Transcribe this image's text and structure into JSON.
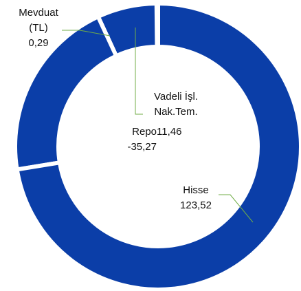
{
  "chart_data": {
    "type": "donut",
    "categories": [
      "Hisse",
      "Repo",
      "Vadeli İşl. Nak.Tem.",
      "Mevduat (TL)"
    ],
    "values": [
      123.52,
      -35.27,
      11.46,
      0.29
    ],
    "value_labels": [
      "123,52",
      "-35,27",
      "11,46",
      "0,29"
    ],
    "color": "#0b3ea8"
  }
}
